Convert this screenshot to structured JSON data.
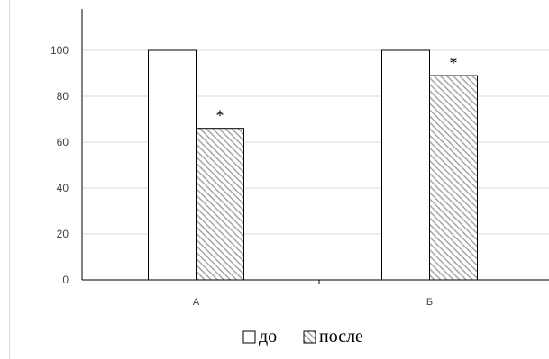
{
  "chart_data": {
    "type": "bar",
    "categories": [
      "А",
      "Б"
    ],
    "series": [
      {
        "name": "до",
        "values": [
          100,
          100
        ],
        "fill": "#ffffff"
      },
      {
        "name": "после",
        "values": [
          66,
          89
        ],
        "fill": "hatch"
      }
    ],
    "ylim": [
      0,
      118
    ],
    "yticks": [
      0,
      20,
      40,
      60,
      80,
      100
    ],
    "grid": true,
    "legend": "bottom",
    "annotations": [
      {
        "category": "А",
        "series": "после",
        "text": "*"
      },
      {
        "category": "Б",
        "series": "после",
        "text": "*"
      }
    ],
    "colors": {
      "gridline": "#d9d9d9",
      "bar_stroke": "#000000",
      "hatch": "#a6a6a6",
      "axis": "#000000"
    }
  }
}
